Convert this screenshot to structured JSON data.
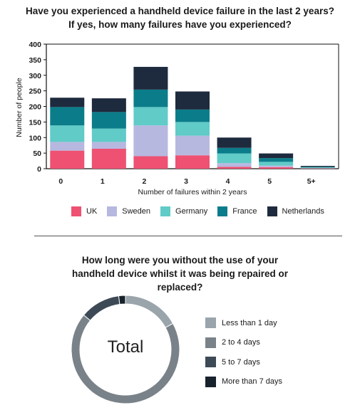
{
  "chart_data": [
    {
      "type": "bar",
      "stacked": true,
      "title": "Have you experienced a handheld device failure in the last 2 years?",
      "subtitle": "If yes, how many failures have you experienced?",
      "xlabel": "Number of failures within 2 years",
      "ylabel": "Number of people",
      "categories": [
        "0",
        "1",
        "2",
        "3",
        "4",
        "5",
        "5+"
      ],
      "ylim": [
        0,
        400
      ],
      "yticks": [
        0,
        50,
        100,
        150,
        200,
        250,
        300,
        350,
        400
      ],
      "series": [
        {
          "name": "UK",
          "color": "#ee5171",
          "values": [
            58,
            64,
            40,
            43,
            6,
            5,
            1
          ]
        },
        {
          "name": "Sweden",
          "color": "#b7b8e0",
          "values": [
            28,
            22,
            99,
            63,
            12,
            5,
            1
          ]
        },
        {
          "name": "Germany",
          "color": "#60cbc7",
          "values": [
            53,
            43,
            59,
            44,
            31,
            12,
            2
          ]
        },
        {
          "name": "France",
          "color": "#0b7d8a",
          "values": [
            59,
            53,
            56,
            40,
            18,
            12,
            2
          ]
        },
        {
          "name": "Netherlands",
          "color": "#1e2a3d",
          "values": [
            30,
            44,
            73,
            58,
            33,
            15,
            3
          ]
        }
      ],
      "grid": false,
      "legend_position": "bottom"
    },
    {
      "type": "pie",
      "donut": true,
      "title": "How long were you without the use of your handheld device whilst it was being repaired or replaced?",
      "center_label": "Total",
      "categories": [
        "Less than 1 day",
        "2 to 4 days",
        "5 to 7 days",
        "More than 7 days"
      ],
      "values": [
        17,
        69,
        12,
        2
      ],
      "colors": [
        "#9aa4ab",
        "#7a8289",
        "#3d4a56",
        "#18222d"
      ],
      "legend_position": "right"
    }
  ]
}
